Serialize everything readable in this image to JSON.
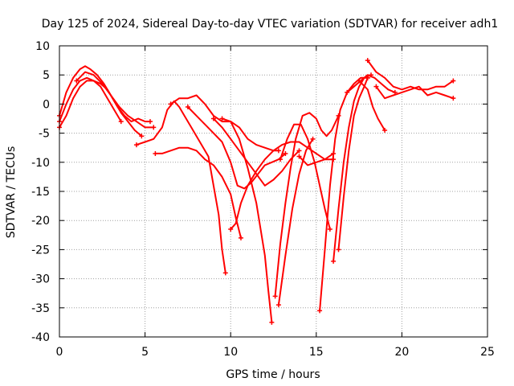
{
  "chart_data": {
    "type": "scatter",
    "title": "Day 125 of 2024, Sidereal Day-to-day VTEC variation (SDTVAR) for receiver adh1",
    "xlabel": "GPS time / hours",
    "ylabel": "SDTVAR / TECUs",
    "xlim": [
      0,
      25
    ],
    "ylim": [
      -40,
      10
    ],
    "xticks": [
      0,
      5,
      10,
      15,
      20,
      25
    ],
    "yticks": [
      -40,
      -35,
      -30,
      -25,
      -20,
      -15,
      -10,
      -5,
      0,
      5,
      10
    ],
    "grid": true,
    "marker": "+",
    "series_color": "#ff0000",
    "series": [
      {
        "x": [
          0,
          0.4,
          0.8,
          1.2,
          1.5,
          1.8,
          2.2,
          2.6,
          3.0,
          3.4,
          3.8,
          4.2,
          4.6,
          5.0,
          5.3
        ],
        "y": [
          -2,
          2,
          4.5,
          6,
          6.5,
          6,
          5,
          3.5,
          1.5,
          -0.5,
          -2,
          -3,
          -2.5,
          -3,
          -3
        ]
      },
      {
        "x": [
          0,
          0.4,
          0.8,
          1.2,
          1.6,
          2.0,
          2.4,
          2.8,
          3.2,
          3.6,
          4.0,
          4.4,
          4.8
        ],
        "y": [
          -3,
          0,
          2.5,
          4,
          4.5,
          4,
          3.5,
          2.5,
          0.5,
          -1.5,
          -3,
          -4.5,
          -5.5
        ]
      },
      {
        "x": [
          0,
          0.4,
          0.8,
          1.2,
          1.6,
          2.0,
          2.4,
          2.8,
          3.2,
          3.6
        ],
        "y": [
          -4,
          -2,
          1,
          3,
          4,
          4,
          3,
          1,
          -1,
          -3
        ]
      },
      {
        "x": [
          1.0,
          1.5,
          2.0,
          2.5,
          3.0,
          3.5,
          4.0,
          4.5,
          5.0,
          5.5
        ],
        "y": [
          4,
          5.5,
          5,
          3.5,
          1.5,
          -0.5,
          -2,
          -3,
          -4,
          -4
        ]
      },
      {
        "x": [
          4.5,
          5.0,
          5.5,
          6.0,
          6.3,
          6.7,
          7.0,
          7.3,
          7.7,
          8.0,
          8.3,
          8.7,
          9.0,
          9.3,
          9.5,
          9.7
        ],
        "y": [
          -7,
          -6.5,
          -6,
          -4,
          -1,
          0.5,
          -0.5,
          -2,
          -4,
          -5.5,
          -7,
          -9,
          -14,
          -19,
          -25,
          -29
        ]
      },
      {
        "x": [
          5.6,
          6.0,
          6.5,
          7.0,
          7.5,
          8.0,
          8.5,
          9.0,
          9.5,
          10.0,
          10.3,
          10.6
        ],
        "y": [
          -8.5,
          -8.5,
          -8,
          -7.5,
          -7.5,
          -8,
          -9.5,
          -10.5,
          -12.5,
          -15.5,
          -19.5,
          -23
        ]
      },
      {
        "x": [
          6.5,
          7.0,
          7.5,
          8.0,
          8.5,
          9.0,
          9.5,
          10.0,
          10.5,
          11.0,
          11.5,
          12.0,
          12.2,
          12.4
        ],
        "y": [
          0,
          1,
          1,
          1.5,
          0,
          -2,
          -3,
          -3,
          -6,
          -11,
          -17,
          -26,
          -32,
          -37.5
        ]
      },
      {
        "x": [
          7.5,
          8.0,
          8.5,
          9.0,
          9.5,
          10.0,
          10.4,
          10.8,
          11.2,
          11.6,
          12.0,
          12.4,
          12.8,
          13.2
        ],
        "y": [
          -0.5,
          -2,
          -3.5,
          -5,
          -6.5,
          -10,
          -14,
          -14.5,
          -13.5,
          -12,
          -10.5,
          -10,
          -9.5,
          -8.5
        ]
      },
      {
        "x": [
          9.0,
          9.5,
          10.0,
          10.5,
          11.0,
          11.5,
          12.0,
          12.5,
          13.0,
          13.5,
          14.0
        ],
        "y": [
          -2.5,
          -4,
          -6,
          -8,
          -10,
          -12,
          -14,
          -13,
          -11.5,
          -9.5,
          -8
        ]
      },
      {
        "x": [
          10.0,
          10.3,
          10.6,
          11.0,
          11.5,
          12.0,
          12.5,
          13.0,
          13.5,
          14.0,
          14.5,
          15.0,
          15.5,
          16.0
        ],
        "y": [
          -21.5,
          -20.5,
          -17,
          -14,
          -11.5,
          -9.5,
          -8,
          -7,
          -6.5,
          -6.5,
          -7.5,
          -8.5,
          -9.5,
          -9.5
        ]
      },
      {
        "x": [
          9.5,
          10.0,
          10.5,
          11.0,
          11.5,
          12.0,
          12.5,
          12.8
        ],
        "y": [
          -2.5,
          -3,
          -4,
          -6,
          -7,
          -7.5,
          -8,
          -8
        ]
      },
      {
        "x": [
          12.6,
          12.9,
          13.2,
          13.5,
          13.8,
          14.2,
          14.6,
          15.0,
          15.3,
          15.6,
          15.9,
          16.3
        ],
        "y": [
          -33,
          -24,
          -17,
          -11,
          -6,
          -2,
          -1.5,
          -2.5,
          -4.5,
          -5.5,
          -4.5,
          -2
        ]
      },
      {
        "x": [
          12.9,
          13.3,
          13.7,
          14.1,
          14.5,
          14.9,
          15.2,
          15.5,
          15.8
        ],
        "y": [
          -9.5,
          -6,
          -3.5,
          -3.5,
          -6,
          -10,
          -14,
          -18,
          -21.5
        ]
      },
      {
        "x": [
          12.8,
          13.2,
          13.6,
          14.0,
          14.4,
          14.8
        ],
        "y": [
          -34.5,
          -26,
          -18,
          -12,
          -8,
          -6
        ]
      },
      {
        "x": [
          14.0,
          14.5,
          15.0,
          15.5,
          16.0
        ],
        "y": [
          -9,
          -10.5,
          -10,
          -9.5,
          -8.5
        ]
      },
      {
        "x": [
          15.2,
          15.5,
          15.8,
          16.1,
          16.4,
          16.8,
          17.2,
          17.6,
          18.0
        ],
        "y": [
          -35.5,
          -25,
          -14,
          -6,
          -1,
          2,
          3.5,
          4.5,
          4.5
        ]
      },
      {
        "x": [
          16.0,
          16.3,
          16.6,
          16.9,
          17.2,
          17.5,
          17.8,
          18.2
        ],
        "y": [
          -27,
          -18,
          -10,
          -4,
          0.5,
          3,
          4.5,
          5
        ]
      },
      {
        "x": [
          16.3,
          16.6,
          16.9,
          17.2,
          17.5,
          17.8,
          18.0
        ],
        "y": [
          -25,
          -16,
          -8,
          -2,
          1,
          3,
          4.5
        ]
      },
      {
        "x": [
          17.5,
          18.0,
          18.3,
          18.6,
          19.0
        ],
        "y": [
          4,
          2.5,
          -0.5,
          -2.5,
          -4.5
        ]
      },
      {
        "x": [
          16.8,
          17.2,
          17.6,
          18.0,
          18.4,
          18.8,
          19.2,
          19.6
        ],
        "y": [
          2,
          3,
          4,
          5,
          4.5,
          3.5,
          2.5,
          2
        ]
      },
      {
        "x": [
          18.0,
          18.5,
          19.0,
          19.5,
          20.0,
          20.5,
          21.0,
          21.5,
          22.0,
          22.5,
          23.0
        ],
        "y": [
          7.5,
          5.5,
          4.5,
          3,
          2.5,
          3,
          2.5,
          2.5,
          3,
          3,
          4
        ]
      },
      {
        "x": [
          18.5,
          19.0,
          19.5,
          20.0,
          20.5,
          21.0,
          21.5,
          22.0,
          22.5,
          23.0
        ],
        "y": [
          3,
          1,
          1.5,
          2,
          2.5,
          3,
          1.5,
          2,
          1.5,
          1
        ]
      }
    ]
  }
}
